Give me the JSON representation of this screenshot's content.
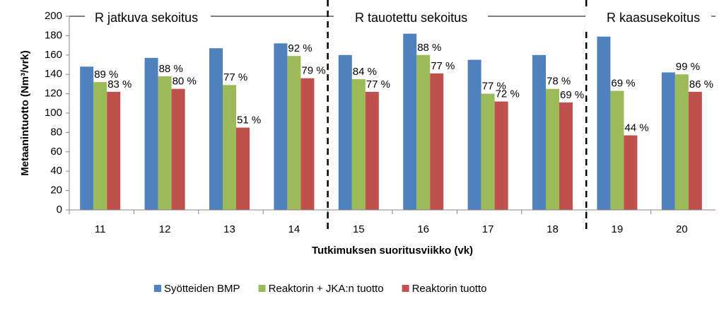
{
  "chart_data": {
    "type": "bar",
    "y_label": "Metaanintuotto (Nm³/vrk)",
    "x_label": "Tutkimuksen suoritusviikko (vk)",
    "categories": [
      "11",
      "12",
      "13",
      "14",
      "15",
      "16",
      "17",
      "18",
      "19",
      "20"
    ],
    "series": [
      {
        "name": "Syötteiden BMP",
        "color": "#4f81bd",
        "values": [
          148,
          157,
          167,
          172,
          160,
          182,
          155,
          160,
          179,
          142
        ]
      },
      {
        "name": "Reaktorin + JKA:n tuotto",
        "color": "#9bbb59",
        "values": [
          132,
          138,
          129,
          159,
          135,
          160,
          120,
          125,
          123,
          140
        ],
        "labels": [
          "89 %",
          "88 %",
          "77 %",
          "92 %",
          "84 %",
          "88 %",
          "77 %",
          "78 %",
          "69 %",
          "99 %"
        ]
      },
      {
        "name": "Reaktorin tuotto",
        "color": "#c0504d",
        "values": [
          122,
          125,
          85,
          136,
          122,
          141,
          112,
          111,
          77,
          122
        ],
        "labels": [
          "83 %",
          "80 %",
          "51 %",
          "79 %",
          "77 %",
          "77 %",
          "72 %",
          "69 %",
          "44 %",
          "86 %"
        ]
      }
    ],
    "sections": [
      "R jatkuva sekoitus",
      "R tauotettu sekoitus",
      "R kaasusekoitus"
    ],
    "ylim": [
      0,
      200
    ],
    "yticks": [
      0,
      20,
      40,
      60,
      80,
      100,
      120,
      140,
      160,
      180,
      200
    ],
    "legend": "bottom"
  }
}
